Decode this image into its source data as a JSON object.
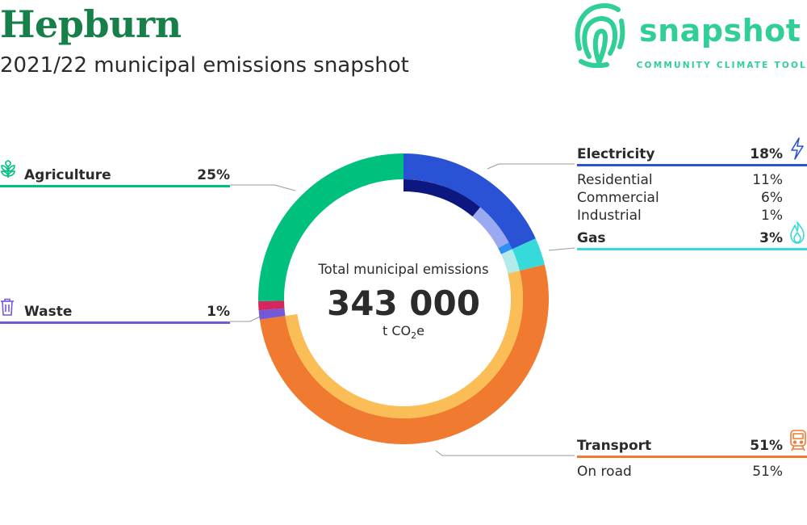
{
  "header": {
    "title": "Hepburn",
    "subtitle": "2021/22 municipal emissions snapshot"
  },
  "logo": {
    "name": "snapshot",
    "tagline": "COMMUNITY CLIMATE TOOL",
    "icon": "fingerprint-logo-icon",
    "color": "#2fcf95"
  },
  "chart_data": {
    "type": "donut",
    "center": {
      "label": "Total municipal emissions",
      "value": "343 000",
      "unit_prefix": "t CO",
      "unit_sub": "2",
      "unit_suffix": "e"
    },
    "categories": [
      {
        "name": "Electricity",
        "value": 18,
        "pct_label": "18%",
        "color": "#2a52d4",
        "icon": "lightning-icon",
        "subcategories": [
          {
            "name": "Residential",
            "value": 11,
            "pct_label": "11%",
            "color": "#0d1780"
          },
          {
            "name": "Commercial",
            "value": 6,
            "pct_label": "6%",
            "color": "#9aaaf0"
          },
          {
            "name": "Industrial",
            "value": 1,
            "pct_label": "1%",
            "color": "#2f8ff2"
          }
        ]
      },
      {
        "name": "Gas",
        "value": 3,
        "pct_label": "3%",
        "color": "#36dada",
        "icon": "flame-icon",
        "subcategories": [
          {
            "name": "",
            "value": 3,
            "pct_label": "",
            "color": "#b2ebea"
          }
        ]
      },
      {
        "name": "Transport",
        "value": 51,
        "pct_label": "51%",
        "color": "#f07a30",
        "icon": "train-icon",
        "subcategories": [
          {
            "name": "On road",
            "value": 51,
            "pct_label": "51%",
            "color": "#fbbd55"
          }
        ]
      },
      {
        "name": "Waste",
        "value": 1,
        "pct_label": "1%",
        "color": "#7358d8",
        "icon": "trash-icon",
        "subcategories": []
      },
      {
        "name": "",
        "value": 1,
        "pct_label": "",
        "color": "#d6265d",
        "icon": "",
        "subcategories": []
      },
      {
        "name": "Agriculture",
        "value": 25,
        "pct_label": "25%",
        "color": "#00c07e",
        "icon": "leaf-icon",
        "subcategories": []
      }
    ]
  }
}
